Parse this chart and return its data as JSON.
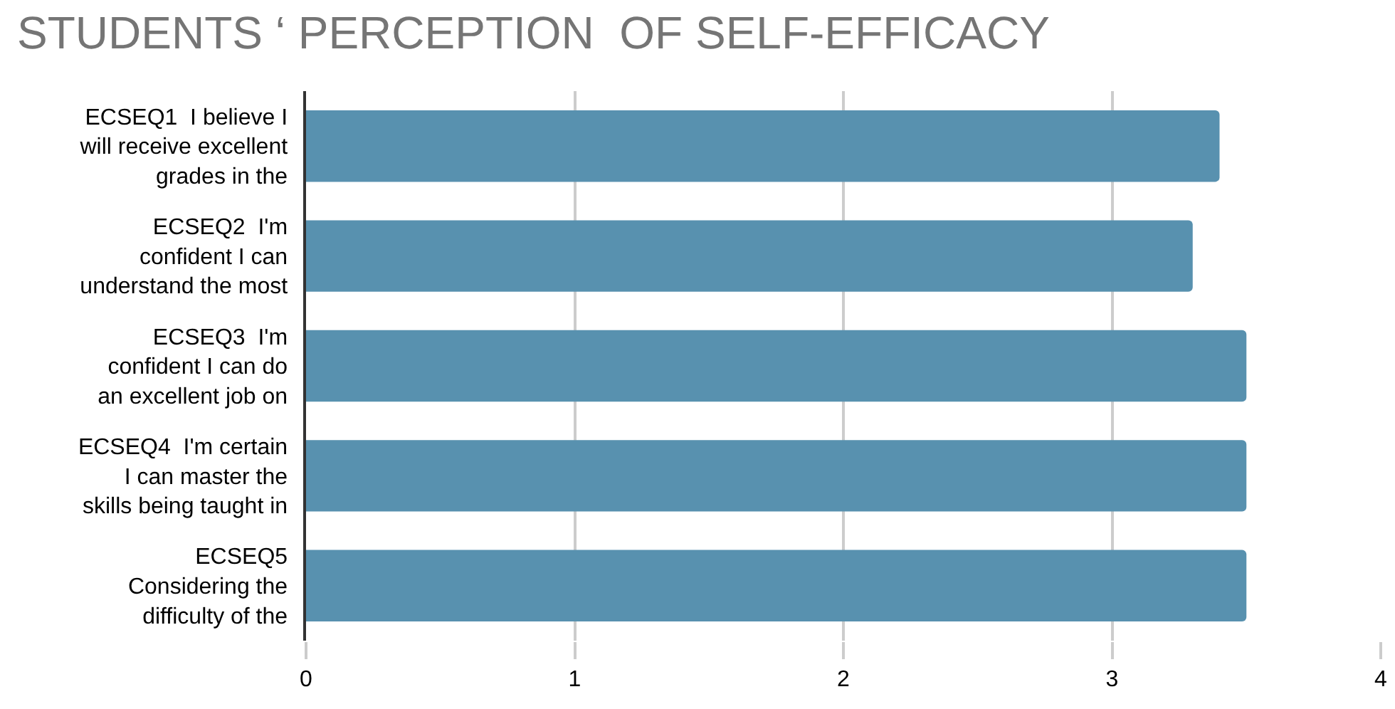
{
  "chart_data": {
    "type": "bar",
    "orientation": "horizontal",
    "title": "STUDENTS ‘ PERCEPTION  OF SELF-EFFICACY",
    "categories": [
      "ECSEQ1  I believe I\nwill receive excellent\ngrades in the",
      "ECSEQ2  I'm\nconfident I can\nunderstand the most",
      "ECSEQ3  I'm\nconfident I can do\nan excellent job on",
      "ECSEQ4  I'm certain\nI can master the\nskills being taught in",
      "ECSEQ5\nConsidering the\ndifficulty of the"
    ],
    "values": [
      3.4,
      3.3,
      3.5,
      3.5,
      3.5
    ],
    "color": "#5891af",
    "xlim": [
      0,
      4
    ],
    "xticks": [
      0,
      1,
      2,
      3,
      4
    ],
    "grid": "x"
  }
}
